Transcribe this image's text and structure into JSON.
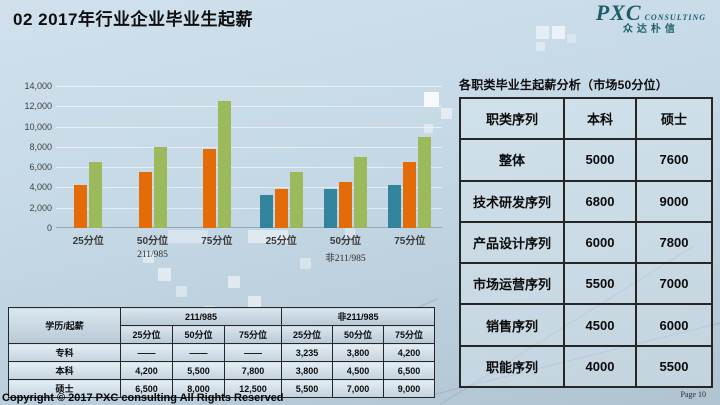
{
  "header": {
    "title": "02 2017年行业企业毕业生起薪"
  },
  "logo": {
    "name": "PXC",
    "tagline": "CONSULTING",
    "chinese": "众达朴信",
    "color": "#1d5e6c"
  },
  "chart_data": {
    "type": "bar",
    "title": "",
    "ylim": [
      0,
      14000
    ],
    "ytick_step": 2000,
    "yticks": [
      "14,000",
      "12,000",
      "10,000",
      "8,000",
      "6,000",
      "4,000",
      "2,000",
      "0"
    ],
    "grid": true,
    "legend": "none",
    "groups": [
      {
        "label": "211/985",
        "categories": [
          "25分位",
          "50分位",
          "75分位"
        ],
        "series": [
          {
            "name": "本科",
            "color": "#e36c09",
            "values": [
              4200,
              5500,
              7800
            ]
          },
          {
            "name": "硕士",
            "color": "#9cba5b",
            "values": [
              6500,
              8000,
              12500
            ]
          }
        ]
      },
      {
        "label": "非211/985",
        "categories": [
          "25分位",
          "50分位",
          "75分位"
        ],
        "series": [
          {
            "name": "专科",
            "color": "#31849b",
            "values": [
              3235,
              3800,
              4200
            ]
          },
          {
            "name": "本科",
            "color": "#e36c09",
            "values": [
              3800,
              4500,
              6500
            ]
          },
          {
            "name": "硕士",
            "color": "#9cba5b",
            "values": [
              5500,
              7000,
              9000
            ]
          }
        ]
      }
    ]
  },
  "right_panel": {
    "title": "各职类毕业生起薪分析（市场50分位）",
    "table": {
      "headers": [
        "职类序列",
        "本科",
        "硕士"
      ],
      "rows": [
        [
          "整体",
          "5000",
          "7600"
        ],
        [
          "技术研发序列",
          "6800",
          "9000"
        ],
        [
          "产品设计序列",
          "6000",
          "7800"
        ],
        [
          "市场运营序列",
          "5500",
          "7000"
        ],
        [
          "销售序列",
          "4500",
          "6000"
        ],
        [
          "职能序列",
          "4000",
          "5500"
        ]
      ]
    }
  },
  "bottom_table": {
    "corner_label": "学历/起薪",
    "group_headers": [
      "211/985",
      "非211/985"
    ],
    "sub_headers": [
      "25分位",
      "50分位",
      "75分位",
      "25分位",
      "50分位",
      "75分位"
    ],
    "rows": [
      {
        "label": "专科",
        "values": [
          "——",
          "——",
          "——",
          "3,235",
          "3,800",
          "4,200"
        ]
      },
      {
        "label": "本科",
        "values": [
          "4,200",
          "5,500",
          "7,800",
          "3,800",
          "4,500",
          "6,500"
        ]
      },
      {
        "label": "硕士",
        "values": [
          "6,500",
          "8,000",
          "12,500",
          "5,500",
          "7,000",
          "9,000"
        ]
      }
    ]
  },
  "footer": {
    "copyright": "Copyright © 2017 PXC consulting All Rights Reserved",
    "page": "Page 10"
  },
  "colors": {
    "bar_orange": "#e36c09",
    "bar_green": "#9cba5b",
    "bar_teal": "#31849b",
    "background_blue": "#c6d9e6"
  }
}
